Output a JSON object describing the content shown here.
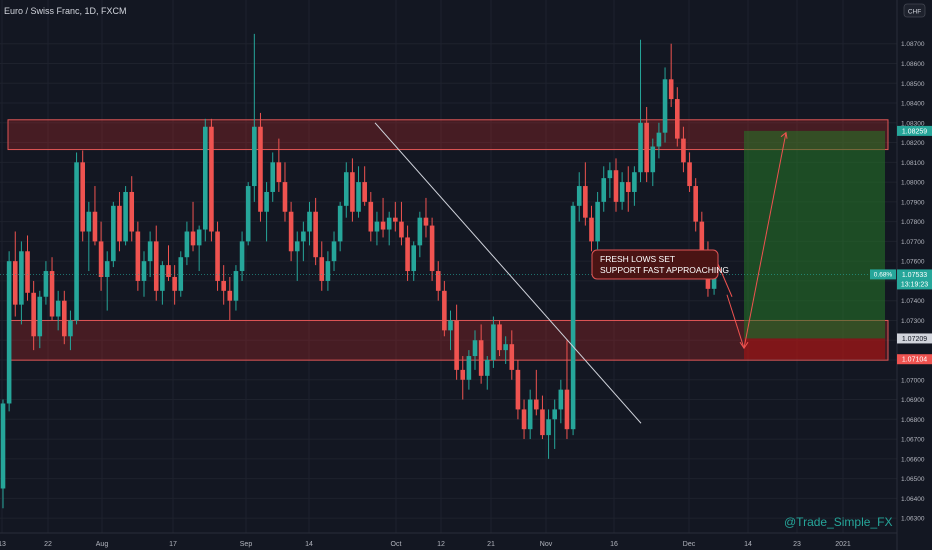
{
  "header": {
    "symbol_label": "Euro / Swiss Franc, 1D, FXCM",
    "currency_label": "CHF"
  },
  "watermark": "@Trade_Simple_FX",
  "annotation": {
    "line1": "FRESH LOWS SET",
    "line2": "SUPPORT FAST APPROACHING"
  },
  "price_axis": {
    "ticks": [
      "1.08700",
      "1.08600",
      "1.08500",
      "1.08400",
      "1.08300",
      "1.08200",
      "1.08100",
      "1.08000",
      "1.07900",
      "1.07800",
      "1.07700",
      "1.07600",
      "1.07500",
      "1.07400",
      "1.07300",
      "1.07200",
      "1.07100",
      "1.07000",
      "1.06900",
      "1.06800",
      "1.06700",
      "1.06600",
      "1.06500",
      "1.06400",
      "1.06300"
    ],
    "target_tag": "1.08259",
    "current_tag": "1.07533",
    "current_pct": "0.68%",
    "countdown": "13:19:23",
    "entry_tag": "1.07209",
    "stop_tag": "1.07104"
  },
  "time_axis": {
    "labels": [
      "13",
      "22",
      "Aug",
      "17",
      "Sep",
      "14",
      "Oct",
      "12",
      "21",
      "Nov",
      "16",
      "Dec",
      "14",
      "23",
      "2021"
    ]
  },
  "colors": {
    "background": "#131722",
    "bull": "#26a69a",
    "bear": "#ef5350",
    "zone_fill": "rgba(190,40,40,0.30)",
    "zone_border": "#e05555",
    "profit_fill": "rgba(38,120,40,0.55)",
    "loss_fill": "rgba(160,20,20,0.65)",
    "trend_line": "#d1d4dc",
    "watermark": "#26a69a"
  },
  "chart_data": {
    "type": "candlestick",
    "title": "Euro / Swiss Franc, 1D, FXCM",
    "y_range": [
      1.0624,
      1.0882
    ],
    "resistance_zone": [
      1.082,
      1.083
    ],
    "support_zone": [
      1.0717,
      1.073
    ],
    "long_position": {
      "entry": 1.07209,
      "target": 1.08259,
      "stop": 1.07104
    },
    "trend_line": {
      "start_price": 1.083,
      "end_price": 1.0678
    },
    "projection": {
      "from_price": 1.0743,
      "low_price": 1.0718,
      "high_price": 1.0825
    },
    "candles": [
      [
        1.0645,
        1.069,
        1.0635,
        1.0688
      ],
      [
        1.0688,
        1.0765,
        1.0684,
        1.076
      ],
      [
        1.076,
        1.0775,
        1.0732,
        1.0738
      ],
      [
        1.0738,
        1.077,
        1.0728,
        1.0765
      ],
      [
        1.0765,
        1.0773,
        1.074,
        1.0744
      ],
      [
        1.0744,
        1.075,
        1.0715,
        1.0722
      ],
      [
        1.0722,
        1.0745,
        1.0716,
        1.0742
      ],
      [
        1.0742,
        1.076,
        1.0738,
        1.0755
      ],
      [
        1.0755,
        1.0762,
        1.073,
        1.0732
      ],
      [
        1.0732,
        1.0745,
        1.0725,
        1.074
      ],
      [
        1.074,
        1.0745,
        1.0718,
        1.0722
      ],
      [
        1.0722,
        1.0735,
        1.0715,
        1.073
      ],
      [
        1.073,
        1.0815,
        1.0728,
        1.081
      ],
      [
        1.081,
        1.0816,
        1.077,
        1.0775
      ],
      [
        1.0775,
        1.079,
        1.0755,
        1.0785
      ],
      [
        1.0785,
        1.0798,
        1.0768,
        1.077
      ],
      [
        1.077,
        1.078,
        1.0745,
        1.0752
      ],
      [
        1.0752,
        1.0765,
        1.0735,
        1.076
      ],
      [
        1.076,
        1.079,
        1.0757,
        1.0788
      ],
      [
        1.0788,
        1.0795,
        1.0765,
        1.077
      ],
      [
        1.077,
        1.0798,
        1.0768,
        1.0795
      ],
      [
        1.0795,
        1.0803,
        1.077,
        1.0775
      ],
      [
        1.0775,
        1.078,
        1.0745,
        1.075
      ],
      [
        1.075,
        1.0765,
        1.0742,
        1.076
      ],
      [
        1.076,
        1.0775,
        1.0752,
        1.077
      ],
      [
        1.077,
        1.0778,
        1.074,
        1.0745
      ],
      [
        1.0745,
        1.076,
        1.0738,
        1.0758
      ],
      [
        1.0758,
        1.0768,
        1.075,
        1.0752
      ],
      [
        1.0752,
        1.0758,
        1.0738,
        1.0745
      ],
      [
        1.0745,
        1.0765,
        1.0742,
        1.0762
      ],
      [
        1.0762,
        1.078,
        1.0758,
        1.0775
      ],
      [
        1.0775,
        1.079,
        1.0765,
        1.0768
      ],
      [
        1.0768,
        1.0778,
        1.0755,
        1.0776
      ],
      [
        1.0776,
        1.0832,
        1.077,
        1.0828
      ],
      [
        1.0828,
        1.0832,
        1.077,
        1.0775
      ],
      [
        1.0775,
        1.078,
        1.0745,
        1.075
      ],
      [
        1.075,
        1.0758,
        1.0738,
        1.0745
      ],
      [
        1.0745,
        1.0752,
        1.073,
        1.074
      ],
      [
        1.074,
        1.0758,
        1.0735,
        1.0755
      ],
      [
        1.0755,
        1.0775,
        1.075,
        1.077
      ],
      [
        1.077,
        1.08,
        1.0768,
        1.0798
      ],
      [
        1.0798,
        1.0875,
        1.079,
        1.0828
      ],
      [
        1.0828,
        1.0835,
        1.078,
        1.0785
      ],
      [
        1.0785,
        1.08,
        1.077,
        1.0795
      ],
      [
        1.0795,
        1.0815,
        1.079,
        1.081
      ],
      [
        1.081,
        1.0822,
        1.0795,
        1.08
      ],
      [
        1.08,
        1.081,
        1.078,
        1.0785
      ],
      [
        1.0785,
        1.079,
        1.076,
        1.0765
      ],
      [
        1.0765,
        1.0775,
        1.075,
        1.077
      ],
      [
        1.077,
        1.078,
        1.076,
        1.0775
      ],
      [
        1.0775,
        1.079,
        1.0768,
        1.0785
      ],
      [
        1.0785,
        1.0792,
        1.0758,
        1.0762
      ],
      [
        1.0762,
        1.077,
        1.0745,
        1.075
      ],
      [
        1.075,
        1.0765,
        1.0745,
        1.076
      ],
      [
        1.076,
        1.0775,
        1.0755,
        1.077
      ],
      [
        1.077,
        1.079,
        1.0765,
        1.0788
      ],
      [
        1.0788,
        1.081,
        1.0782,
        1.0805
      ],
      [
        1.0805,
        1.0812,
        1.078,
        1.0785
      ],
      [
        1.0785,
        1.0808,
        1.0782,
        1.08
      ],
      [
        1.08,
        1.0808,
        1.0788,
        1.079
      ],
      [
        1.079,
        1.0795,
        1.077,
        1.0775
      ],
      [
        1.0775,
        1.0785,
        1.0768,
        1.078
      ],
      [
        1.078,
        1.0792,
        1.0772,
        1.0776
      ],
      [
        1.0776,
        1.0785,
        1.0768,
        1.0782
      ],
      [
        1.0782,
        1.079,
        1.0775,
        1.078
      ],
      [
        1.078,
        1.079,
        1.0768,
        1.0772
      ],
      [
        1.0772,
        1.0778,
        1.075,
        1.0755
      ],
      [
        1.0755,
        1.077,
        1.075,
        1.0768
      ],
      [
        1.0768,
        1.0785,
        1.0762,
        1.0782
      ],
      [
        1.0782,
        1.0792,
        1.0772,
        1.0778
      ],
      [
        1.0778,
        1.0782,
        1.075,
        1.0755
      ],
      [
        1.0755,
        1.076,
        1.074,
        1.0745
      ],
      [
        1.0745,
        1.075,
        1.0722,
        1.0725
      ],
      [
        1.0725,
        1.0735,
        1.0715,
        1.073
      ],
      [
        1.073,
        1.0738,
        1.07,
        1.0705
      ],
      [
        1.0705,
        1.0712,
        1.069,
        1.07
      ],
      [
        1.07,
        1.0715,
        1.0695,
        1.0712
      ],
      [
        1.0712,
        1.0725,
        1.0705,
        1.072
      ],
      [
        1.072,
        1.0728,
        1.0698,
        1.0702
      ],
      [
        1.0702,
        1.0712,
        1.0695,
        1.071
      ],
      [
        1.071,
        1.0732,
        1.0706,
        1.0728
      ],
      [
        1.0728,
        1.073,
        1.0712,
        1.0715
      ],
      [
        1.0715,
        1.0722,
        1.0708,
        1.0718
      ],
      [
        1.0718,
        1.0725,
        1.07,
        1.0705
      ],
      [
        1.0705,
        1.071,
        1.068,
        1.0685
      ],
      [
        1.0685,
        1.069,
        1.067,
        1.0675
      ],
      [
        1.0675,
        1.0695,
        1.067,
        1.069
      ],
      [
        1.069,
        1.0705,
        1.0682,
        1.0685
      ],
      [
        1.0685,
        1.0692,
        1.067,
        1.0672
      ],
      [
        1.0672,
        1.0685,
        1.066,
        1.068
      ],
      [
        1.068,
        1.069,
        1.0665,
        1.0685
      ],
      [
        1.0685,
        1.07,
        1.0678,
        1.0695
      ],
      [
        1.0695,
        1.072,
        1.067,
        1.0675
      ],
      [
        1.0675,
        1.079,
        1.0672,
        1.0788
      ],
      [
        1.0788,
        1.0805,
        1.078,
        1.0798
      ],
      [
        1.0798,
        1.081,
        1.0778,
        1.0782
      ],
      [
        1.0782,
        1.0788,
        1.0765,
        1.077
      ],
      [
        1.077,
        1.0795,
        1.0766,
        1.079
      ],
      [
        1.079,
        1.0808,
        1.0785,
        1.0802
      ],
      [
        1.0802,
        1.081,
        1.0792,
        1.0806
      ],
      [
        1.0806,
        1.0812,
        1.0785,
        1.079
      ],
      [
        1.079,
        1.0805,
        1.0786,
        1.08
      ],
      [
        1.08,
        1.0808,
        1.0785,
        1.0795
      ],
      [
        1.0795,
        1.0808,
        1.0788,
        1.0805
      ],
      [
        1.0805,
        1.0872,
        1.08,
        1.083
      ],
      [
        1.083,
        1.0838,
        1.08,
        1.0805
      ],
      [
        1.0805,
        1.0822,
        1.0798,
        1.0818
      ],
      [
        1.0818,
        1.083,
        1.0812,
        1.0825
      ],
      [
        1.0825,
        1.0858,
        1.082,
        1.0852
      ],
      [
        1.0852,
        1.087,
        1.0838,
        1.0842
      ],
      [
        1.0842,
        1.0848,
        1.0818,
        1.0822
      ],
      [
        1.0822,
        1.0828,
        1.0805,
        1.081
      ],
      [
        1.081,
        1.0815,
        1.0795,
        1.0798
      ],
      [
        1.0798,
        1.0802,
        1.0775,
        1.078
      ],
      [
        1.078,
        1.0785,
        1.076,
        1.0765
      ],
      [
        1.0765,
        1.077,
        1.0742,
        1.0746
      ],
      [
        1.0746,
        1.0756,
        1.0743,
        1.0753
      ]
    ]
  }
}
